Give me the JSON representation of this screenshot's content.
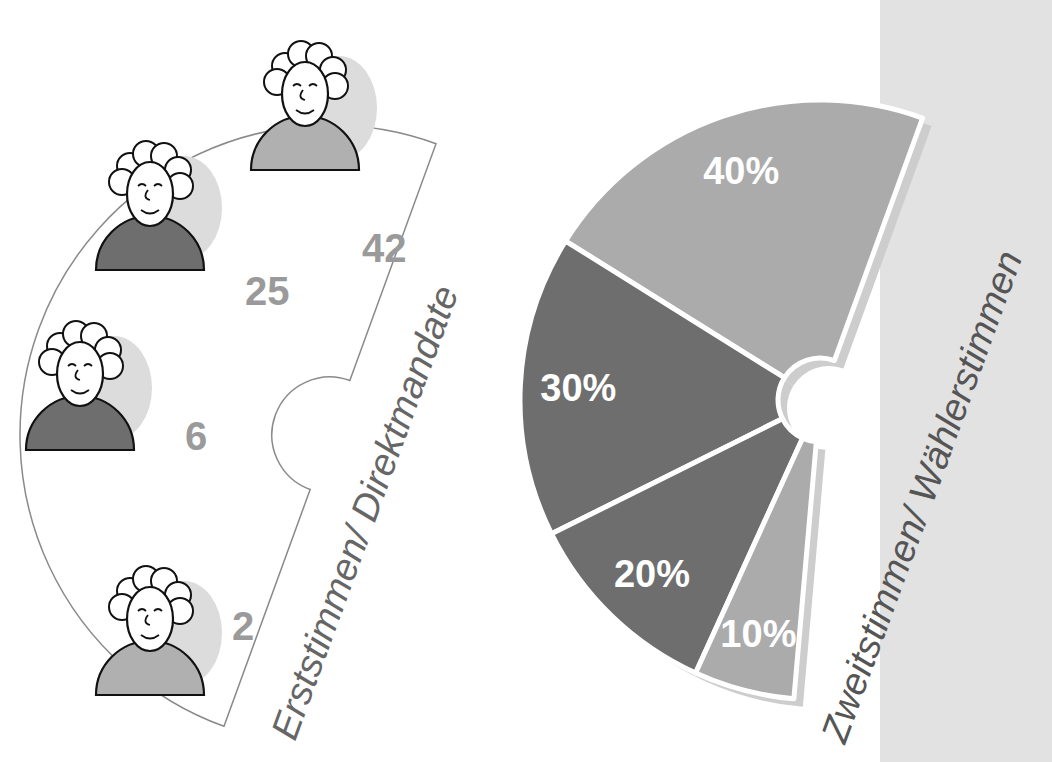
{
  "chart_data": [
    {
      "type": "pictogram",
      "title": "Erststimmen/ Direktmandate",
      "values": [
        42,
        25,
        6,
        2
      ],
      "colors": [
        "#b0b0b0",
        "#6e6e6e",
        "#6e6e6e",
        "#b0b0b0"
      ],
      "data_labels": true
    },
    {
      "type": "pie",
      "title": "Zweitstimmen/ Wählerstimmen",
      "values": [
        40,
        30,
        20,
        10
      ],
      "value_labels": [
        "40%",
        "30%",
        "20%",
        "10%"
      ],
      "colors": [
        "#ababab",
        "#6e6e6e",
        "#6e6e6e",
        "#ababab"
      ],
      "data_labels": true
    }
  ]
}
